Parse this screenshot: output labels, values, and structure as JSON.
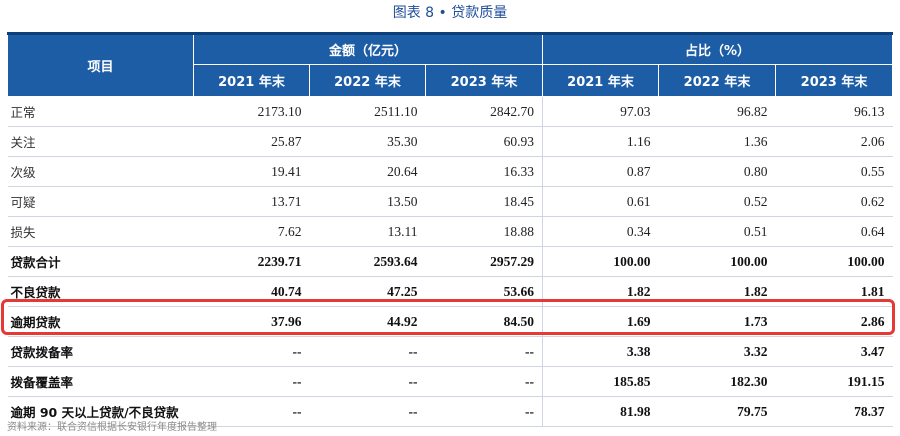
{
  "caption": "图表 8 • 贷款质量",
  "header": {
    "item_label": "项目",
    "group_amount": "金额（亿元）",
    "group_share": "占比（%）",
    "years": [
      "2021 年末",
      "2022 年末",
      "2023 年末",
      "2021 年末",
      "2022 年末",
      "2023 年末"
    ]
  },
  "rows": [
    {
      "label": "正常",
      "values": [
        "2173.10",
        "2511.10",
        "2842.70",
        "97.03",
        "96.82",
        "96.13"
      ]
    },
    {
      "label": "关注",
      "values": [
        "25.87",
        "35.30",
        "60.93",
        "1.16",
        "1.36",
        "2.06"
      ]
    },
    {
      "label": "次级",
      "values": [
        "19.41",
        "20.64",
        "16.33",
        "0.87",
        "0.80",
        "0.55"
      ]
    },
    {
      "label": "可疑",
      "values": [
        "13.71",
        "13.50",
        "18.45",
        "0.61",
        "0.52",
        "0.62"
      ]
    },
    {
      "label": "损失",
      "values": [
        "7.62",
        "13.11",
        "18.88",
        "0.34",
        "0.51",
        "0.64"
      ]
    },
    {
      "label": "贷款合计",
      "values": [
        "2239.71",
        "2593.64",
        "2957.29",
        "100.00",
        "100.00",
        "100.00"
      ]
    },
    {
      "label": "不良贷款",
      "values": [
        "40.74",
        "47.25",
        "53.66",
        "1.82",
        "1.82",
        "1.81"
      ]
    },
    {
      "label": "逾期贷款",
      "values": [
        "37.96",
        "44.92",
        "84.50",
        "1.69",
        "1.73",
        "2.86"
      ]
    },
    {
      "label": "贷款拨备率",
      "values": [
        "--",
        "--",
        "--",
        "3.38",
        "3.32",
        "3.47"
      ]
    },
    {
      "label": "拨备覆盖率",
      "values": [
        "--",
        "--",
        "--",
        "185.85",
        "182.30",
        "191.15"
      ]
    },
    {
      "label": "逾期 90 天以上贷款/不良贷款",
      "values": [
        "--",
        "--",
        "--",
        "81.98",
        "79.75",
        "78.37"
      ]
    }
  ],
  "highlight_color": "#e53935",
  "header_color": "#1c5da6",
  "source": "资料来源：联合资信根据长安银行年度报告整理"
}
